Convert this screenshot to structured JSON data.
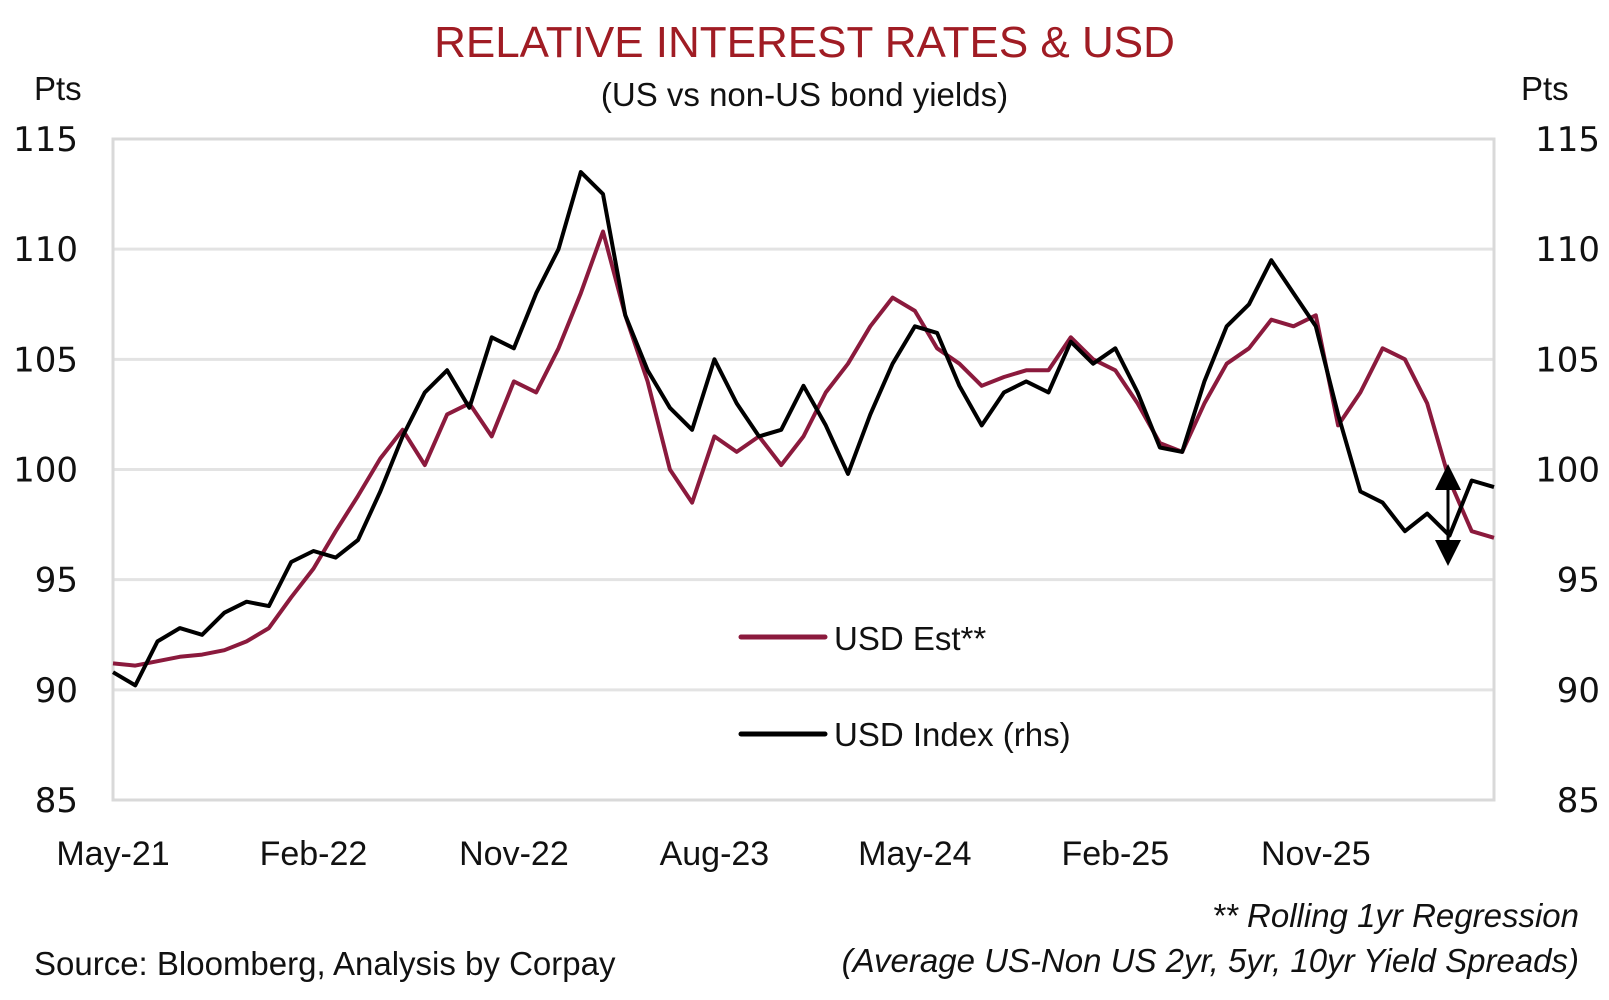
{
  "chart_data": {
    "type": "line",
    "title": "RELATIVE INTEREST RATES & USD",
    "subtitle": "(US vs non-US bond yields)",
    "ylabel_left": "Pts",
    "ylabel_right": "Pts",
    "ylim": [
      85,
      115
    ],
    "ylim_right": [
      85,
      115
    ],
    "yticks": [
      115,
      110,
      105,
      100,
      95,
      90,
      85
    ],
    "xticks": [
      "May-21",
      "Feb-22",
      "Nov-22",
      "Aug-23",
      "May-24",
      "Feb-25",
      "Nov-25"
    ],
    "x_range_months": [
      0,
      62
    ],
    "grid": true,
    "legend_position": "center-bottom",
    "series": [
      {
        "name": "USD Est**",
        "axis": "left",
        "color": "#8b1a3d",
        "points": [
          [
            0,
            91.2
          ],
          [
            1,
            91.1
          ],
          [
            2,
            91.3
          ],
          [
            3,
            91.5
          ],
          [
            4,
            91.6
          ],
          [
            5,
            91.8
          ],
          [
            6,
            92.2
          ],
          [
            7,
            92.8
          ],
          [
            8,
            94.2
          ],
          [
            9,
            95.5
          ],
          [
            10,
            97.2
          ],
          [
            11,
            98.8
          ],
          [
            12,
            100.5
          ],
          [
            13,
            101.8
          ],
          [
            14,
            100.2
          ],
          [
            15,
            102.5
          ],
          [
            16,
            103.0
          ],
          [
            17,
            101.5
          ],
          [
            18,
            104.0
          ],
          [
            19,
            103.5
          ],
          [
            20,
            105.5
          ],
          [
            21,
            108.0
          ],
          [
            22,
            110.8
          ],
          [
            23,
            107.0
          ],
          [
            24,
            104.0
          ],
          [
            25,
            100.0
          ],
          [
            26,
            98.5
          ],
          [
            27,
            101.5
          ],
          [
            28,
            100.8
          ],
          [
            29,
            101.5
          ],
          [
            30,
            100.2
          ],
          [
            31,
            101.5
          ],
          [
            32,
            103.5
          ],
          [
            33,
            104.8
          ],
          [
            34,
            106.5
          ],
          [
            35,
            107.8
          ],
          [
            36,
            107.2
          ],
          [
            37,
            105.5
          ],
          [
            38,
            104.8
          ],
          [
            39,
            103.8
          ],
          [
            40,
            104.2
          ],
          [
            41,
            104.5
          ],
          [
            42,
            104.5
          ],
          [
            43,
            106.0
          ],
          [
            44,
            105.0
          ],
          [
            45,
            104.5
          ],
          [
            46,
            103.0
          ],
          [
            47,
            101.2
          ],
          [
            48,
            100.8
          ],
          [
            49,
            103.0
          ],
          [
            50,
            104.8
          ],
          [
            51,
            105.5
          ],
          [
            52,
            106.8
          ],
          [
            53,
            106.5
          ],
          [
            54,
            107.0
          ],
          [
            55,
            102.0
          ],
          [
            56,
            103.5
          ],
          [
            57,
            105.5
          ],
          [
            58,
            105.0
          ],
          [
            59,
            103.0
          ],
          [
            60,
            99.5
          ],
          [
            61,
            97.2
          ],
          [
            62,
            96.9
          ]
        ]
      },
      {
        "name": "USD Index (rhs)",
        "axis": "right",
        "color": "#000000",
        "points": [
          [
            0,
            90.8
          ],
          [
            1,
            90.2
          ],
          [
            2,
            92.2
          ],
          [
            3,
            92.8
          ],
          [
            4,
            92.5
          ],
          [
            5,
            93.5
          ],
          [
            6,
            94.0
          ],
          [
            7,
            93.8
          ],
          [
            8,
            95.8
          ],
          [
            9,
            96.3
          ],
          [
            10,
            96.0
          ],
          [
            11,
            96.8
          ],
          [
            12,
            99.0
          ],
          [
            13,
            101.5
          ],
          [
            14,
            103.5
          ],
          [
            15,
            104.5
          ],
          [
            16,
            102.8
          ],
          [
            17,
            106.0
          ],
          [
            18,
            105.5
          ],
          [
            19,
            108.0
          ],
          [
            20,
            110.0
          ],
          [
            21,
            113.5
          ],
          [
            22,
            112.5
          ],
          [
            23,
            107.0
          ],
          [
            24,
            104.5
          ],
          [
            25,
            102.8
          ],
          [
            26,
            101.8
          ],
          [
            27,
            105.0
          ],
          [
            28,
            103.0
          ],
          [
            29,
            101.5
          ],
          [
            30,
            101.8
          ],
          [
            31,
            103.8
          ],
          [
            32,
            102.0
          ],
          [
            33,
            99.8
          ],
          [
            34,
            102.5
          ],
          [
            35,
            104.8
          ],
          [
            36,
            106.5
          ],
          [
            37,
            106.2
          ],
          [
            38,
            103.8
          ],
          [
            39,
            102.0
          ],
          [
            40,
            103.5
          ],
          [
            41,
            104.0
          ],
          [
            42,
            103.5
          ],
          [
            43,
            105.8
          ],
          [
            44,
            104.8
          ],
          [
            45,
            105.5
          ],
          [
            46,
            103.5
          ],
          [
            47,
            101.0
          ],
          [
            48,
            100.8
          ],
          [
            49,
            104.0
          ],
          [
            50,
            106.5
          ],
          [
            51,
            107.5
          ],
          [
            52,
            109.5
          ],
          [
            53,
            108.0
          ],
          [
            54,
            106.5
          ],
          [
            55,
            102.5
          ],
          [
            56,
            99.0
          ],
          [
            57,
            98.5
          ],
          [
            58,
            97.2
          ],
          [
            59,
            98.0
          ],
          [
            60,
            97.0
          ],
          [
            61,
            99.5
          ],
          [
            62,
            99.2
          ]
        ]
      }
    ],
    "annotation": "double-headed-arrow"
  },
  "footnotes": {
    "line1": "** Rolling 1yr Regression",
    "line2": "(Average US-Non US 2yr, 5yr, 10yr Yield Spreads)"
  },
  "source": "Source: Bloomberg, Analysis by Corpay"
}
